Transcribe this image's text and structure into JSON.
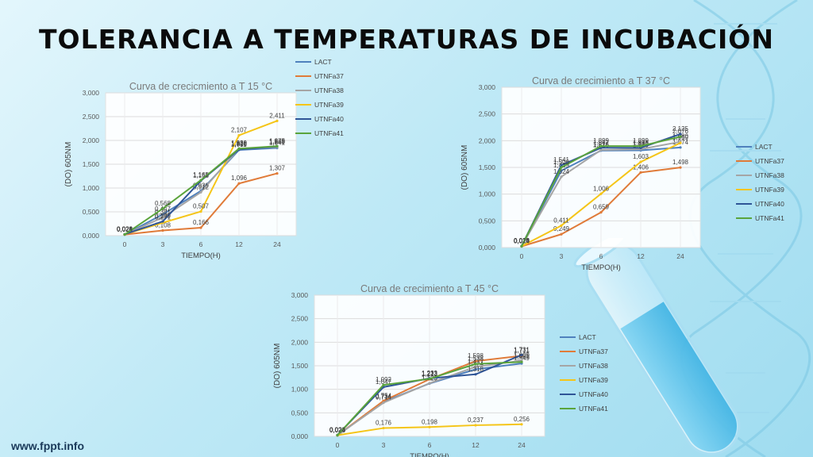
{
  "page": {
    "title": "TOLERANCIA A TEMPERATURAS DE INCUBACIÓN",
    "footer": "www.fppt.info"
  },
  "chart_data": [
    {
      "type": "line",
      "title": "Curva de crecicmiento a T 15 °C",
      "xlabel": "TIEMPO(H)",
      "ylabel": "(DO) 605NM",
      "categories": [
        "0",
        "3",
        "6",
        "12",
        "24"
      ],
      "ylim": [
        0,
        3
      ],
      "yticks": [
        "0,000",
        "0,500",
        "1,000",
        "1,500",
        "2,000",
        "2,500",
        "3,000"
      ],
      "grid": true,
      "legend": "right",
      "series": [
        {
          "name": "LACT",
          "color": "#4f81bd",
          "values": [
            0.02,
            0.447,
            0.939,
            1.799,
            1.841
          ],
          "labels": [
            "0,020",
            "0,447",
            "0,939",
            "1,799",
            "1,841"
          ]
        },
        {
          "name": "UTNFa37",
          "color": "#e07b39",
          "values": [
            0.022,
            0.108,
            0.166,
            1.096,
            1.307
          ],
          "labels": [
            "0,022",
            "0,108",
            "0,166",
            "1,096",
            "1,307"
          ]
        },
        {
          "name": "UTNFa38",
          "color": "#a5a5a5",
          "values": [
            0.024,
            0.381,
            0.912,
            1.83,
            1.86
          ],
          "labels": [
            "0,024",
            "0,381",
            "0,912",
            "1,830",
            "1,860"
          ]
        },
        {
          "name": "UTNFa39",
          "color": "#f5c518",
          "values": [
            0.026,
            0.271,
            0.507,
            2.107,
            2.411
          ],
          "labels": [
            "0,026",
            "0,271",
            "0,507",
            "2,107",
            "2,411"
          ]
        },
        {
          "name": "UTNFa40",
          "color": "#2f5597",
          "values": [
            0.028,
            0.299,
            1.153,
            1.811,
            1.875
          ],
          "labels": [
            "0,028",
            "0,299",
            "1,153",
            "1,811",
            "1,875"
          ]
        },
        {
          "name": "UTNFa41",
          "color": "#5aa43c",
          "values": [
            0.024,
            0.568,
            1.165,
            1.828,
            1.879
          ],
          "labels": [
            "0,024",
            "0,568",
            "1,165",
            "1,828",
            "1,879"
          ]
        }
      ]
    },
    {
      "type": "line",
      "title": "Curva de crecimiento a T 37 °C",
      "xlabel": "TIEMPO(H)",
      "ylabel": "(DO) 605NM",
      "categories": [
        "0",
        "3",
        "6",
        "12",
        "24"
      ],
      "ylim": [
        0,
        3
      ],
      "yticks": [
        "0,000",
        "0,500",
        "1,000",
        "1,500",
        "2,000",
        "2,500",
        "3,000"
      ],
      "grid": true,
      "legend": "right",
      "series": [
        {
          "name": "LACT",
          "color": "#4f81bd",
          "values": [
            0.02,
            1.439,
            1.816,
            1.819,
            1.874
          ],
          "labels": [
            "0,020",
            "1,439",
            "1,816",
            "1,819",
            "1,874"
          ]
        },
        {
          "name": "UTNFa37",
          "color": "#e07b39",
          "values": [
            0.022,
            0.249,
            0.659,
            1.406,
            1.498
          ],
          "labels": [
            "0,022",
            "0,249",
            "0,659",
            "1,406",
            "1,498"
          ]
        },
        {
          "name": "UTNFa38",
          "color": "#a5a5a5",
          "values": [
            0.024,
            1.324,
            1.826,
            1.842,
            1.98
          ],
          "labels": [
            "0,024",
            "1,324",
            "1,826",
            "1,842",
            "1,980"
          ]
        },
        {
          "name": "UTNFa39",
          "color": "#f5c518",
          "values": [
            0.026,
            0.411,
            1.006,
            1.603,
            1.959
          ],
          "labels": [
            "0,026",
            "0,411",
            "1,006",
            "1,603",
            "1,959"
          ]
        },
        {
          "name": "UTNFa40",
          "color": "#2f5597",
          "values": [
            0.028,
            1.541,
            1.867,
            1.866,
            2.125
          ],
          "labels": [
            "0,028",
            "1,541",
            "1,867",
            "1,866",
            "2,125"
          ]
        },
        {
          "name": "UTNFa41",
          "color": "#5aa43c",
          "values": [
            0.024,
            1.5,
            1.899,
            1.899,
            2.076
          ],
          "labels": [
            "0,024",
            "1,500",
            "1,899",
            "1,899",
            "2,076"
          ]
        }
      ]
    },
    {
      "type": "line",
      "title": "Curva de crecimiento a T 45 °C",
      "xlabel": "TIEMPO(H)",
      "ylabel": "(DO) 605NM",
      "categories": [
        "0",
        "3",
        "6",
        "12",
        "24"
      ],
      "ylim": [
        0,
        3
      ],
      "yticks": [
        "0,000",
        "0,500",
        "1,000",
        "1,500",
        "2,000",
        "2,500",
        "3,000"
      ],
      "grid": true,
      "legend": "right",
      "series": [
        {
          "name": "LACT",
          "color": "#4f81bd",
          "values": [
            0.02,
            0.734,
            1.123,
            1.424,
            1.549
          ],
          "labels": [
            "0,020",
            "0,734",
            "1,123",
            "1,424",
            "1,549"
          ]
        },
        {
          "name": "UTNFa37",
          "color": "#e07b39",
          "values": [
            0.022,
            0.754,
            1.213,
            1.598,
            1.711
          ],
          "labels": [
            "0,022",
            "0,754",
            "1,213",
            "1,598",
            "1,711"
          ]
        },
        {
          "name": "UTNFa38",
          "color": "#a5a5a5",
          "values": [
            0.024,
            0.714,
            1.129,
            1.477,
            1.609
          ],
          "labels": [
            "0,024",
            "0,714",
            "1,129",
            "1,477",
            "1,609"
          ]
        },
        {
          "name": "UTNFa39",
          "color": "#f5c518",
          "values": [
            0.026,
            0.176,
            0.198,
            0.237,
            0.256
          ],
          "labels": [
            "0,026",
            "0,176",
            "0,198",
            "0,237",
            "0,256"
          ]
        },
        {
          "name": "UTNFa40",
          "color": "#2f5597",
          "values": [
            0.028,
            1.047,
            1.233,
            1.318,
            1.731
          ],
          "labels": [
            "0,028",
            "1,047",
            "1,233",
            "1,318",
            "1,731"
          ]
        },
        {
          "name": "UTNFa41",
          "color": "#5aa43c",
          "values": [
            0.024,
            1.092,
            1.223,
            1.538,
            1.581
          ],
          "labels": [
            "0,024",
            "1,092",
            "1,223",
            "1,538",
            "1,581"
          ]
        }
      ]
    }
  ]
}
